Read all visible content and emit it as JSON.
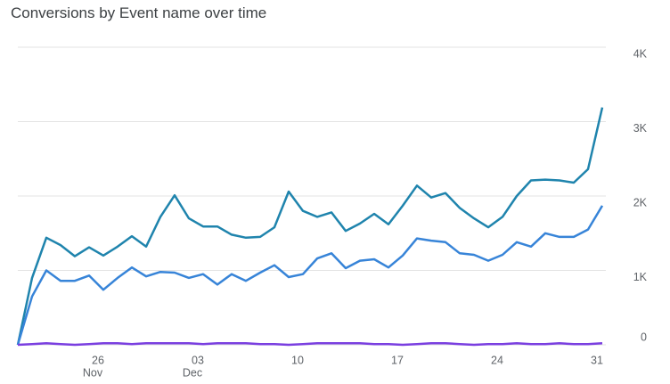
{
  "chart_data": {
    "type": "line",
    "title": "Conversions by Event name over time",
    "categories": [
      null,
      null,
      null,
      null,
      null,
      "26",
      null,
      null,
      null,
      null,
      null,
      null,
      "03",
      null,
      null,
      null,
      null,
      null,
      null,
      "10",
      null,
      null,
      null,
      null,
      null,
      null,
      "17",
      null,
      null,
      null,
      null,
      null,
      null,
      "24",
      null,
      null,
      null,
      null,
      null,
      null,
      "31",
      null
    ],
    "category_months": [
      null,
      null,
      null,
      null,
      null,
      "Nov",
      null,
      null,
      null,
      null,
      null,
      null,
      "Dec",
      null,
      null,
      null,
      null,
      null,
      null,
      null,
      null,
      null,
      null,
      null,
      null,
      null,
      null,
      null,
      null,
      null,
      null,
      null,
      null,
      null,
      null,
      null,
      null,
      null,
      null,
      null,
      null,
      null
    ],
    "series": [
      {
        "color": "#1f84ad",
        "values": [
          0,
          900,
          1440,
          1340,
          1190,
          1310,
          1200,
          1320,
          1460,
          1320,
          1720,
          2010,
          1700,
          1590,
          1590,
          1480,
          1440,
          1450,
          1580,
          2060,
          1800,
          1720,
          1780,
          1530,
          1630,
          1760,
          1620,
          1870,
          2140,
          1980,
          2040,
          1840,
          1700,
          1580,
          1720,
          2000,
          2210,
          2220,
          2210,
          2180,
          2360,
          3190
        ]
      },
      {
        "color": "#3784d8",
        "values": [
          0,
          650,
          1000,
          860,
          860,
          930,
          740,
          900,
          1040,
          920,
          980,
          970,
          900,
          950,
          810,
          950,
          860,
          970,
          1070,
          910,
          950,
          1160,
          1230,
          1030,
          1130,
          1150,
          1040,
          1200,
          1430,
          1400,
          1380,
          1230,
          1210,
          1130,
          1210,
          1380,
          1320,
          1500,
          1450,
          1450,
          1550,
          1870
        ]
      },
      {
        "color": "#7a3fe0",
        "values": [
          0,
          10,
          20,
          10,
          0,
          10,
          20,
          20,
          10,
          20,
          20,
          20,
          20,
          10,
          20,
          20,
          20,
          10,
          10,
          0,
          10,
          20,
          20,
          20,
          20,
          10,
          10,
          0,
          10,
          20,
          20,
          10,
          0,
          10,
          10,
          20,
          10,
          10,
          20,
          10,
          10,
          20
        ]
      }
    ],
    "ylim": [
      0,
      4000
    ],
    "yticks": [
      {
        "value": 0,
        "label": "0"
      },
      {
        "value": 1000,
        "label": "1K"
      },
      {
        "value": 2000,
        "label": "2K"
      },
      {
        "value": 3000,
        "label": "3K"
      },
      {
        "value": 4000,
        "label": "4K"
      }
    ],
    "y_axis_side": "right",
    "grid": true
  }
}
